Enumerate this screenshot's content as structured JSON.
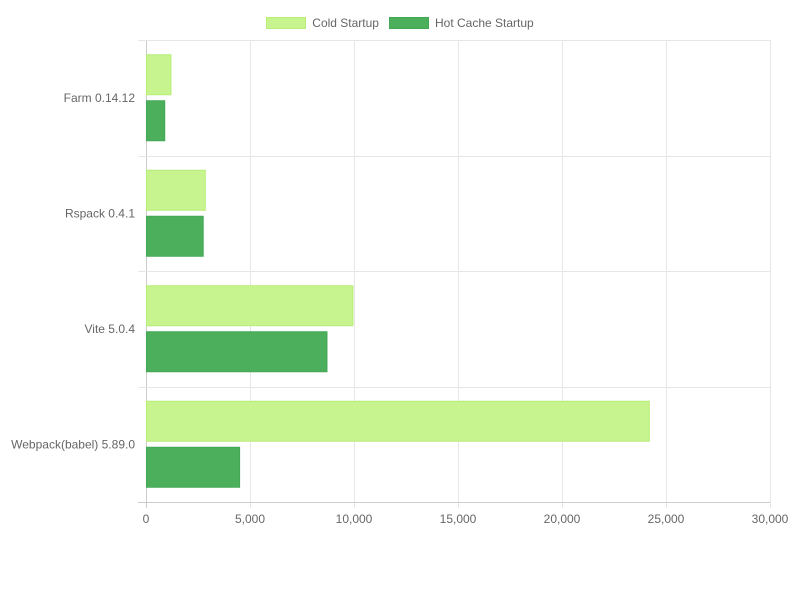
{
  "chart_data": {
    "type": "bar",
    "orientation": "horizontal",
    "categories": [
      "Farm 0.14.12",
      "Rspack 0.4.1",
      "Vite 5.0.4",
      "Webpack(babel) 5.89.0"
    ],
    "series": [
      {
        "name": "Cold Startup",
        "values": [
          1200,
          2850,
          9950,
          24200
        ],
        "color": "#c7f48e",
        "border": "#b8ee78"
      },
      {
        "name": "Hot Cache Startup",
        "values": [
          900,
          2750,
          8700,
          4500
        ],
        "color": "#4caf5c",
        "border": "#43a853"
      }
    ],
    "xlim": [
      0,
      30000
    ],
    "xticks": [
      "0",
      "5,000",
      "10,000",
      "15,000",
      "20,000",
      "25,000",
      "30,000"
    ],
    "xtick_values": [
      0,
      5000,
      10000,
      15000,
      20000,
      25000,
      30000
    ],
    "grid": true,
    "legend_position": "top-center",
    "title": "",
    "xlabel": "",
    "ylabel": ""
  }
}
